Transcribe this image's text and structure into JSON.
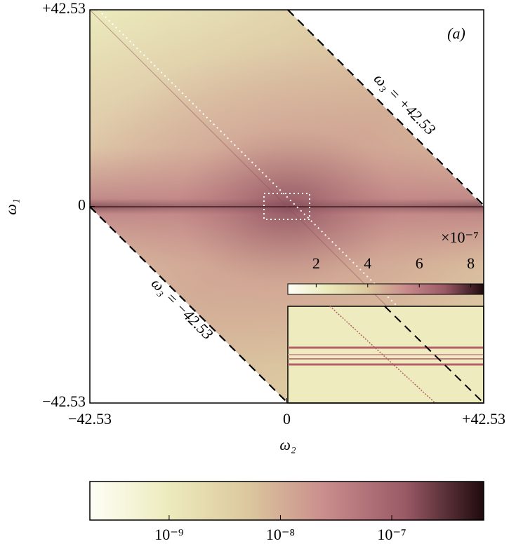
{
  "chart_data": {
    "type": "heatmap",
    "x_label": "ω₂",
    "y_label": "ω₁",
    "xlim": [
      -42.53,
      42.53
    ],
    "ylim": [
      -42.53,
      42.53
    ],
    "xticks": [
      {
        "value": -42.53,
        "label": "−42.53"
      },
      0,
      {
        "value": 42.53,
        "label": "+42.53"
      }
    ],
    "yticks": [
      {
        "value": -42.53,
        "label": "−42.53"
      },
      0,
      {
        "value": 42.53,
        "label": "+42.53"
      }
    ],
    "annotations": [
      "(a)",
      "ω₃ = +42.53",
      "ω₃ = −42.53"
    ],
    "colorbar": {
      "scale": "log",
      "clim": [
        1.94e-10,
        6.7e-07
      ],
      "ticks": [
        {
          "value": 1e-09,
          "label": "10⁻⁹"
        },
        {
          "value": 1e-08,
          "label": "10⁻⁸"
        },
        {
          "value": 1e-07,
          "label": "10⁻⁷"
        }
      ],
      "colors": [
        "#fffef6",
        "#ecebbd",
        "#dcc89e",
        "#c98c8c",
        "#9a5a66",
        "#1e0a0d"
      ]
    },
    "inset_colorbar": {
      "scale": "linear",
      "clim": [
        0.9,
        8.5
      ],
      "ticks": [
        2,
        4,
        6,
        8
      ],
      "multiplier": "×10⁻⁷"
    }
  }
}
